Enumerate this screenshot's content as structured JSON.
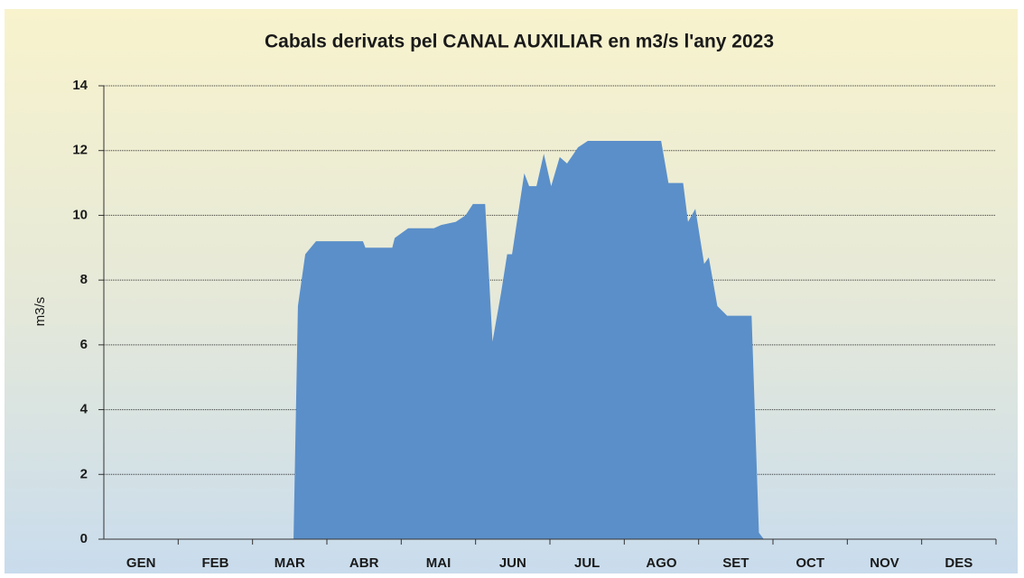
{
  "chart_data": {
    "type": "area",
    "title": "Cabals derivats pel CANAL AUXILIAR en m3/s l'any 2023",
    "y_label": "m3/s",
    "categories": [
      "GEN",
      "FEB",
      "MAR",
      "ABR",
      "MAI",
      "JUN",
      "JUL",
      "AGO",
      "SET",
      "OCT",
      "NOV",
      "DES"
    ],
    "xlim": [
      0,
      365
    ],
    "x": [
      77.6,
      79.4,
      82.4,
      86.8,
      106,
      107,
      118,
      119,
      124.5,
      135,
      138,
      144,
      148,
      151,
      156,
      159,
      162.5,
      165,
      167,
      172,
      174,
      177,
      180,
      183,
      186.5,
      189.5,
      194,
      198,
      228,
      231,
      237,
      239,
      242,
      245.6,
      247.5,
      251,
      255,
      265,
      268,
      270
    ],
    "values": [
      0,
      7.2,
      8.8,
      9.2,
      9.2,
      9.0,
      9.0,
      9.3,
      9.6,
      9.6,
      9.7,
      9.8,
      10.0,
      10.35,
      10.35,
      6.1,
      7.6,
      8.8,
      8.8,
      11.3,
      10.9,
      10.9,
      11.9,
      10.9,
      11.8,
      11.6,
      12.1,
      12.3,
      12.3,
      11.0,
      11.0,
      9.8,
      10.2,
      8.5,
      8.7,
      7.2,
      6.9,
      6.9,
      0.2,
      0
    ],
    "color": "#5b8fc9",
    "ylim": [
      0,
      14
    ],
    "yticks": [
      0,
      2,
      4,
      6,
      8,
      10,
      12,
      14
    ],
    "grid": true
  }
}
